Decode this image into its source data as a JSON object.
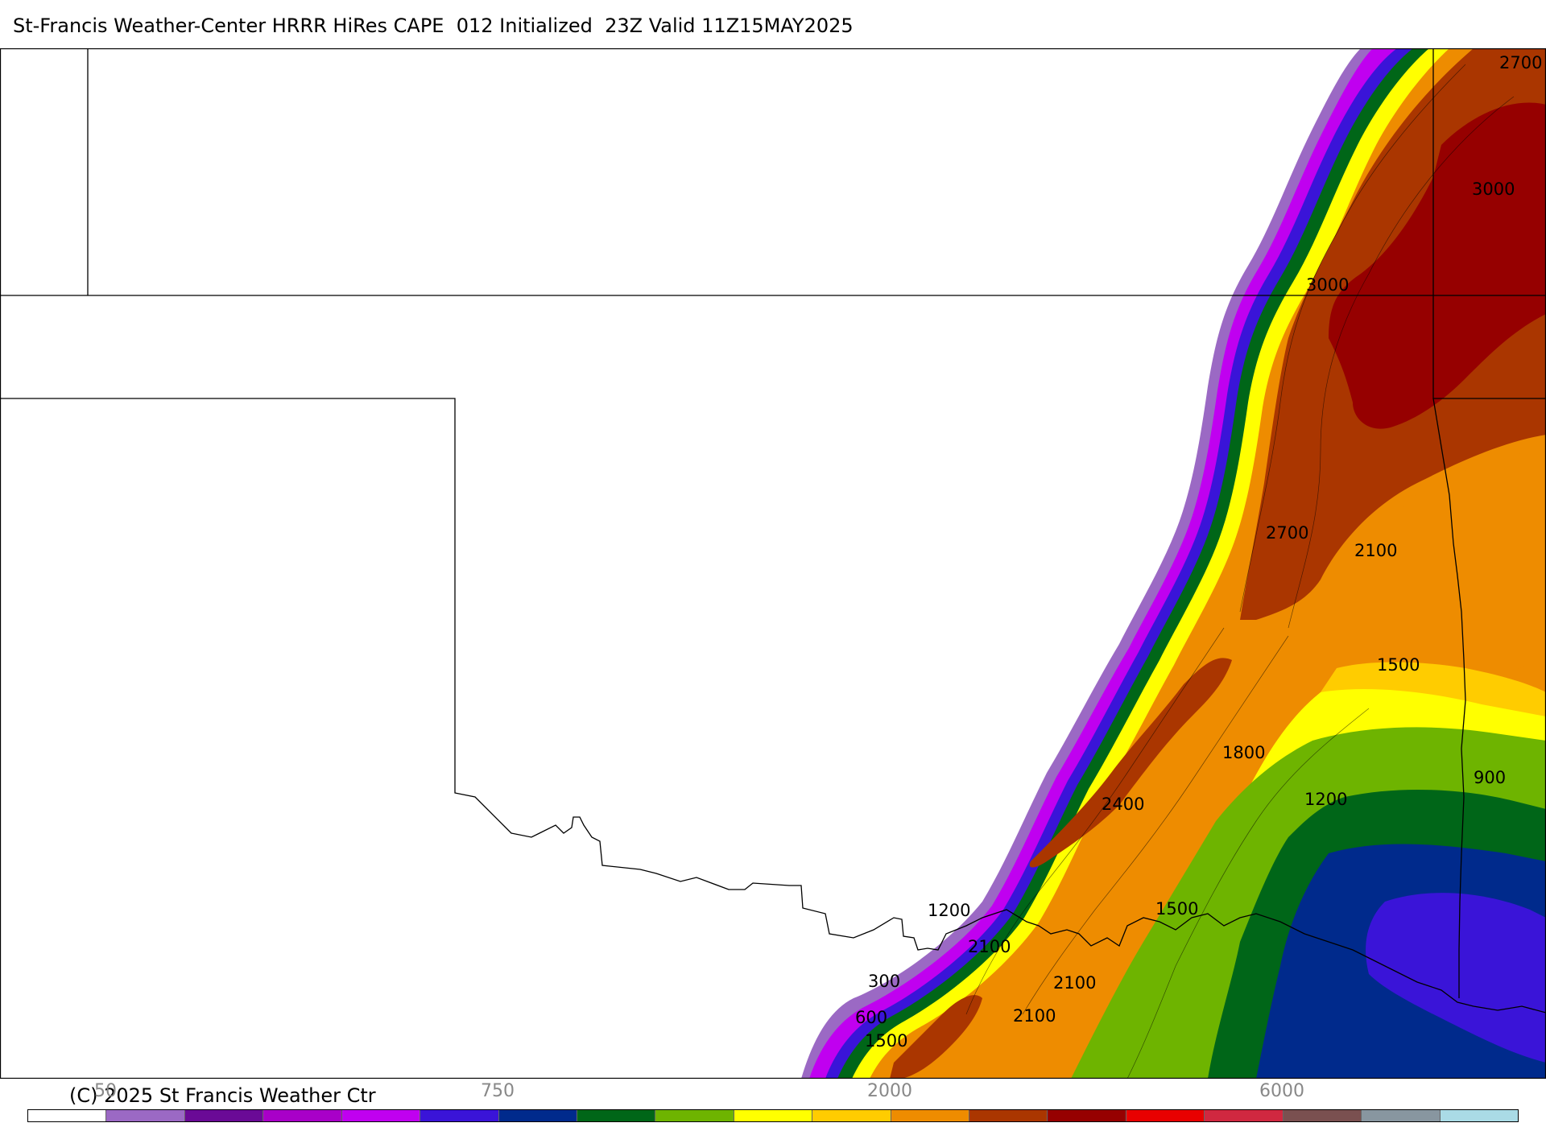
{
  "header": {
    "title": "St-Francis Weather-Center HRRR HiRes CAPE  012 Initialized  23Z Valid 11Z15MAY2025"
  },
  "footer": {
    "copyright": "(C) 2025 St Francis Weather Ctr"
  },
  "colorbar": {
    "tick_labels": [
      "50",
      "750",
      "2000",
      "6000"
    ],
    "colors": [
      "#ffffff",
      "#9b69c4",
      "#6a0a96",
      "#a800c8",
      "#c000f0",
      "#3a14d8",
      "#002a8c",
      "#006618",
      "#6eb400",
      "#ffff00",
      "#ffcc00",
      "#ee8c00",
      "#aa3600",
      "#960000",
      "#e80000",
      "#d02840",
      "#7a5050",
      "#8896a0",
      "#aadbe6"
    ]
  },
  "map": {
    "contour_labels": [
      "2700",
      "3000",
      "3000",
      "2700",
      "2100",
      "1500",
      "1800",
      "2400",
      "900",
      "1200",
      "1200",
      "1500",
      "2100",
      "2100",
      "2100",
      "300",
      "600",
      "1500"
    ]
  }
}
